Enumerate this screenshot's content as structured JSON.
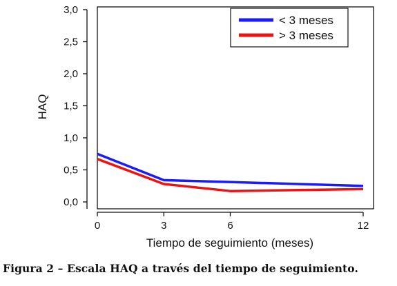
{
  "chart_data": {
    "type": "line",
    "xlabel": "Tiempo de seguimiento (meses)",
    "ylabel": "HAQ",
    "x": [
      0,
      3,
      6,
      12
    ],
    "x_ticks": [
      0,
      3,
      6,
      12
    ],
    "x_tick_labels": [
      "0",
      "3",
      "6",
      "12"
    ],
    "xlim": [
      0,
      12
    ],
    "ylim": [
      0,
      3.0
    ],
    "y_ticks": [
      0,
      0.5,
      1.0,
      1.5,
      2.0,
      2.5,
      3.0
    ],
    "y_tick_labels": [
      "0,0",
      "0,5",
      "1,0",
      "1,5",
      "2,0",
      "2,5",
      "3,0"
    ],
    "grid": false,
    "legend_position": "top-right",
    "series": [
      {
        "name": "< 3 meses",
        "color": "#1a1aff",
        "values": [
          0.75,
          0.34,
          0.31,
          0.25
        ]
      },
      {
        "name": "> 3 meses",
        "color": "#ee1111",
        "values": [
          0.67,
          0.28,
          0.17,
          0.2
        ]
      }
    ]
  },
  "caption": "Figura 2 – Escala HAQ a través del tiempo de seguimiento."
}
